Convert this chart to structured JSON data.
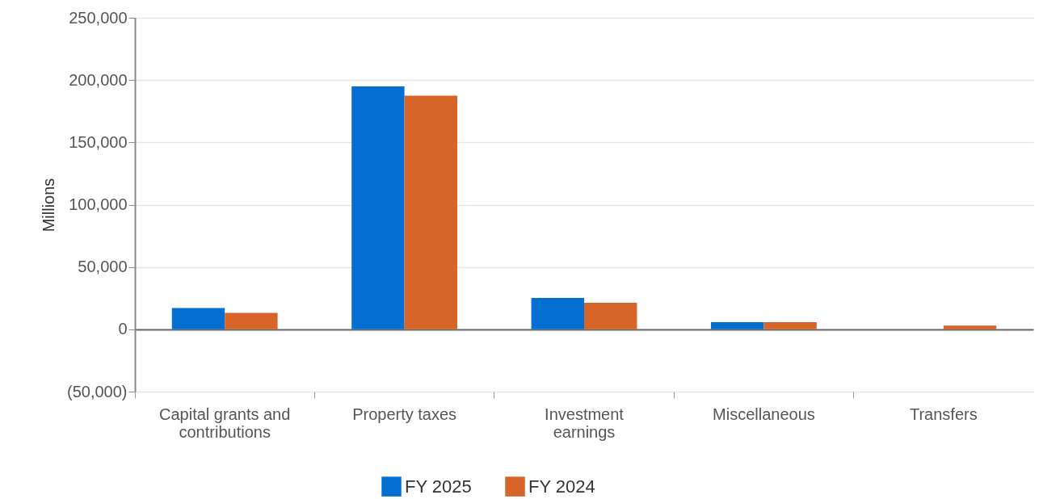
{
  "chart_data": {
    "type": "bar",
    "ylabel": "Millions",
    "categories": [
      "Capital grants and contributions",
      "Property taxes",
      "Investment earnings",
      "Miscellaneous",
      "Transfers"
    ],
    "series": [
      {
        "name": "FY 2025",
        "color": "#036fd3",
        "values": [
          17100,
          195000,
          25100,
          5800,
          null
        ]
      },
      {
        "name": "FY 2024",
        "color": "#d7652a",
        "values": [
          13200,
          187400,
          21200,
          5800,
          3000
        ]
      }
    ],
    "ylim": [
      -50000,
      250000
    ],
    "yticks": [
      {
        "value": -50000,
        "label": "(50,000)"
      },
      0,
      {
        "value": 50000,
        "label": "50,000"
      },
      {
        "value": 100000,
        "label": "100,000"
      },
      {
        "value": 150000,
        "label": "150,000"
      },
      {
        "value": 200000,
        "label": "200,000"
      },
      {
        "value": 250000,
        "label": "250,000"
      }
    ],
    "grid": "y",
    "legend": "bottom"
  }
}
